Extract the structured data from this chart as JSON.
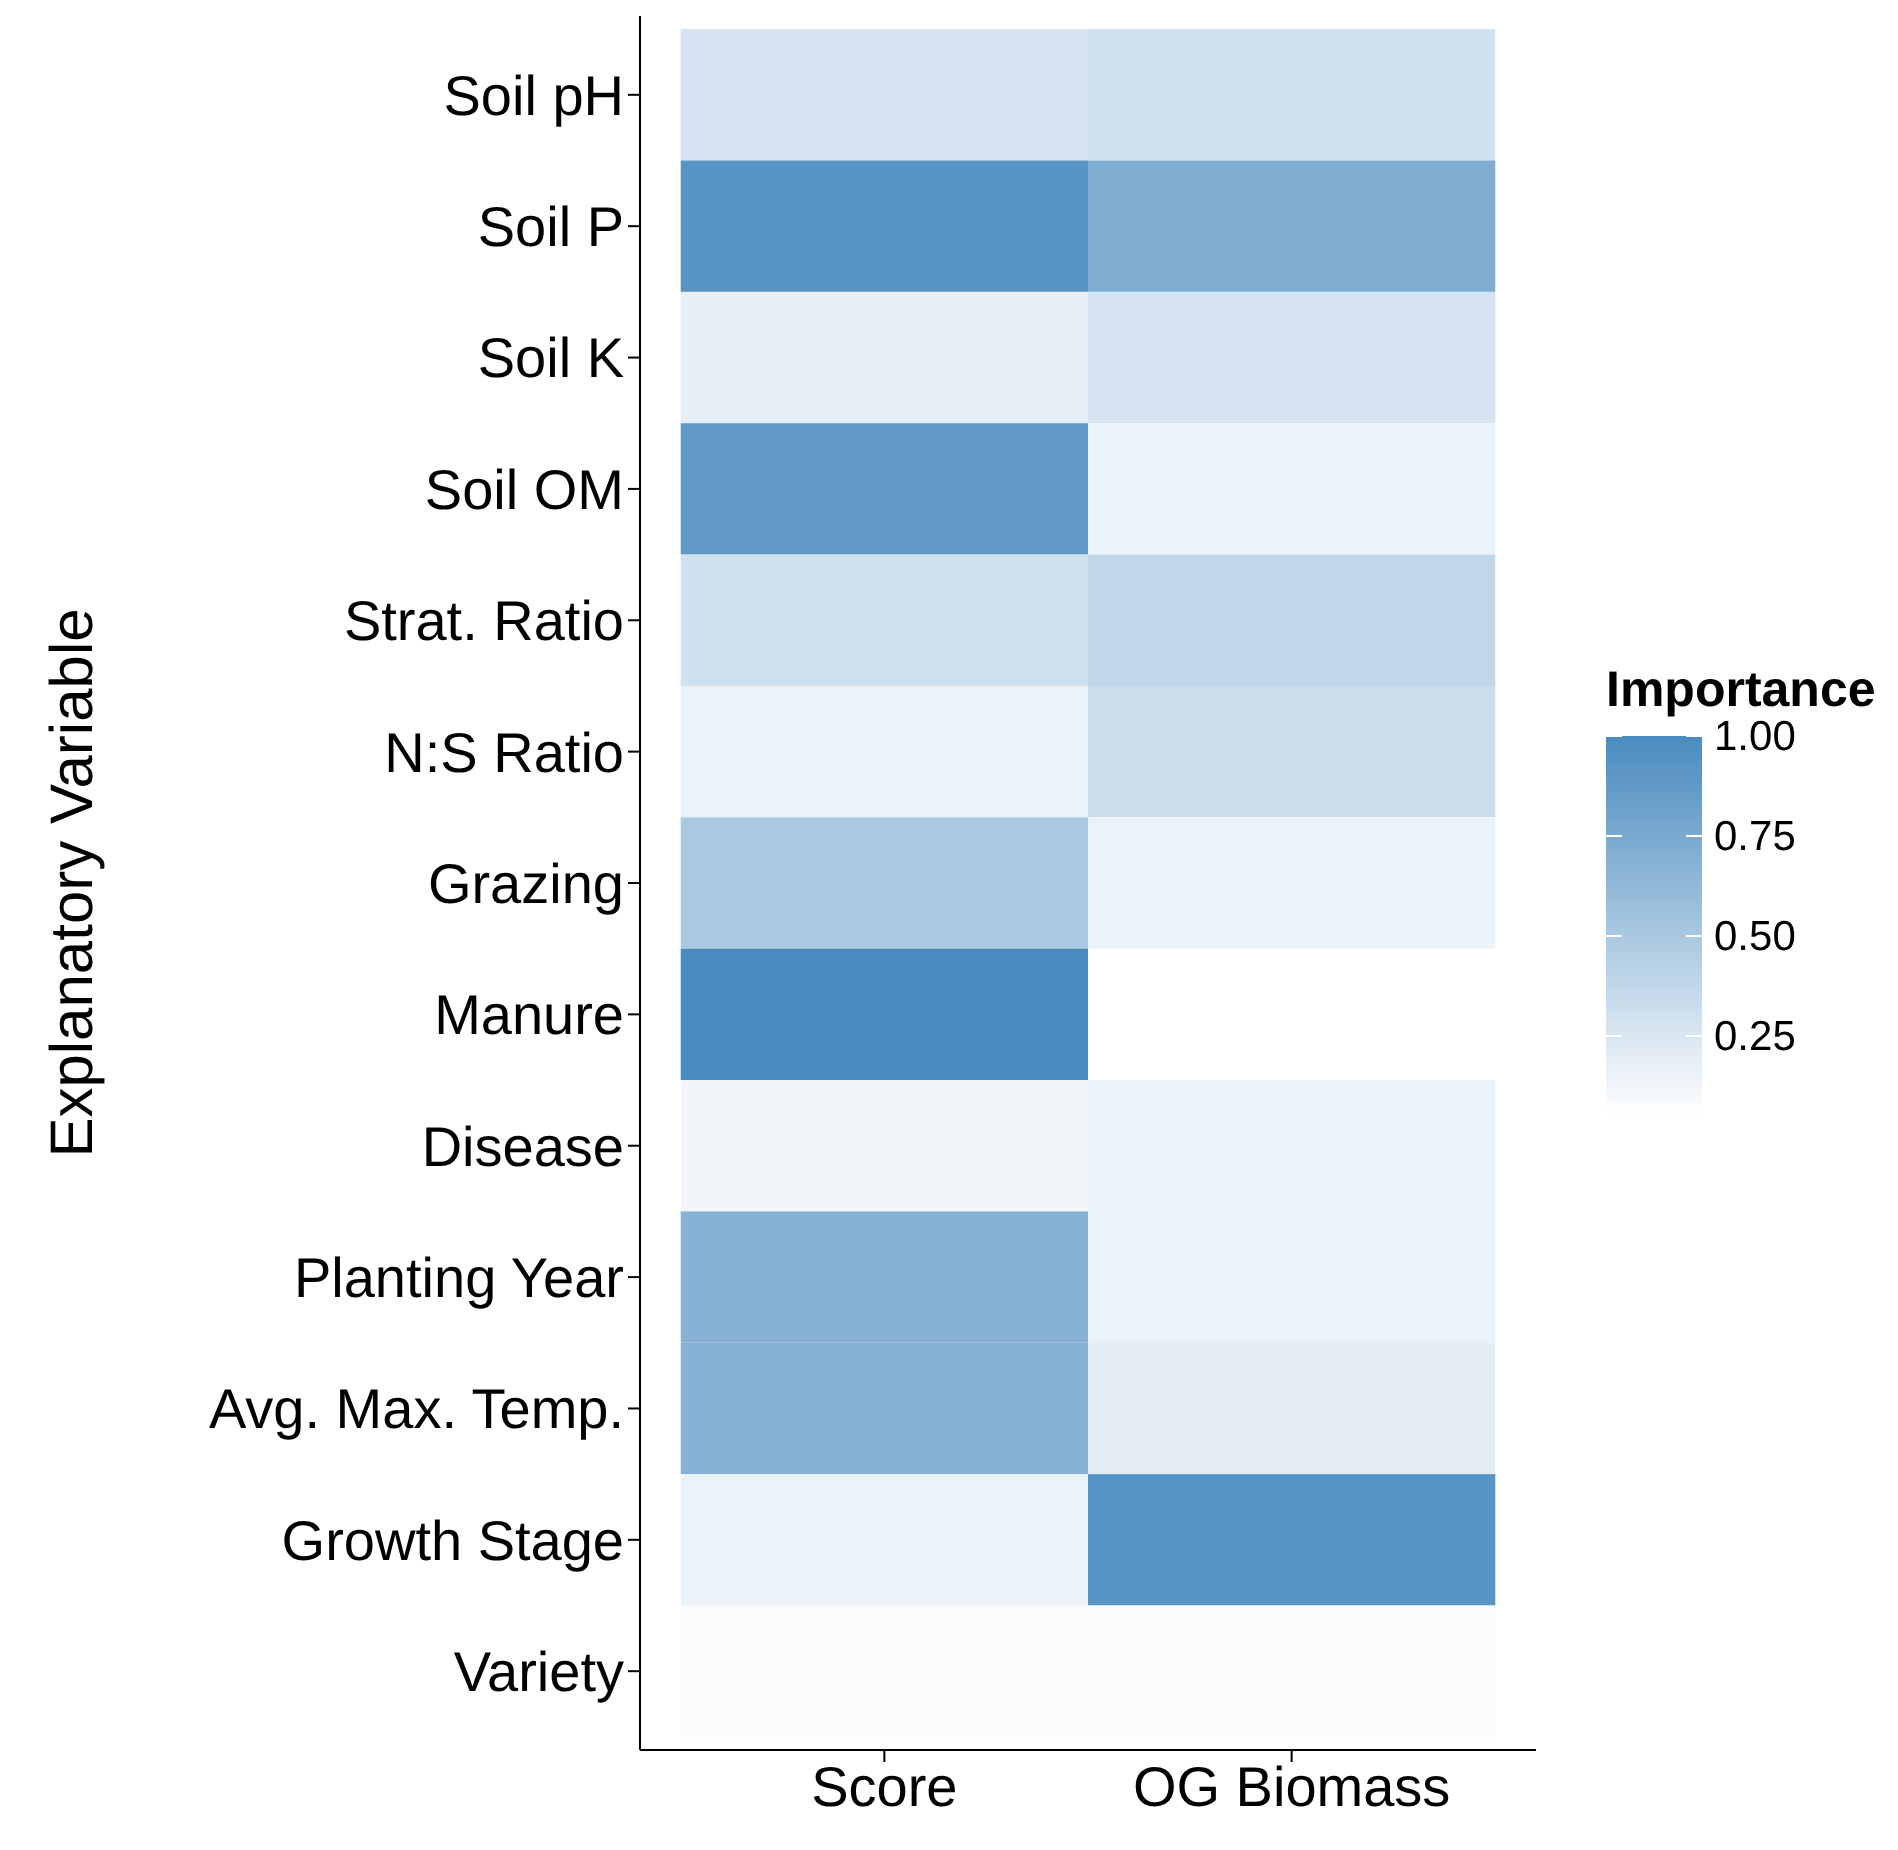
{
  "chart_data": {
    "type": "heatmap",
    "ylabel": "Explanatory Variable",
    "legend_title": "Importance",
    "categories": [
      "Score",
      "OG Biomass"
    ],
    "y_categories": [
      "Soil pH",
      "Soil P",
      "Soil K",
      "Soil OM",
      "Strat. Ratio",
      "N:S Ratio",
      "Grazing",
      "Manure",
      "Disease",
      "Planting Year",
      "Avg. Max. Temp.",
      "Growth Stage",
      "Variety"
    ],
    "cells": [
      [
        0.27,
        0.3
      ],
      [
        0.93,
        0.72
      ],
      [
        0.18,
        0.27
      ],
      [
        0.88,
        0.15
      ],
      [
        0.3,
        0.38
      ],
      [
        0.15,
        0.33
      ],
      [
        0.5,
        0.15
      ],
      [
        1.0,
        0.05
      ],
      [
        0.12,
        0.15
      ],
      [
        0.68,
        0.15
      ],
      [
        0.68,
        0.2
      ],
      [
        0.15,
        0.93
      ],
      [
        0.08,
        0.08
      ]
    ],
    "clim": [
      0.05,
      1.0
    ],
    "cticks": [
      0.25,
      {
        "value": 0.5,
        "label": "0.50"
      },
      0.75,
      {
        "value": 1.0,
        "label": "1.00"
      }
    ]
  }
}
